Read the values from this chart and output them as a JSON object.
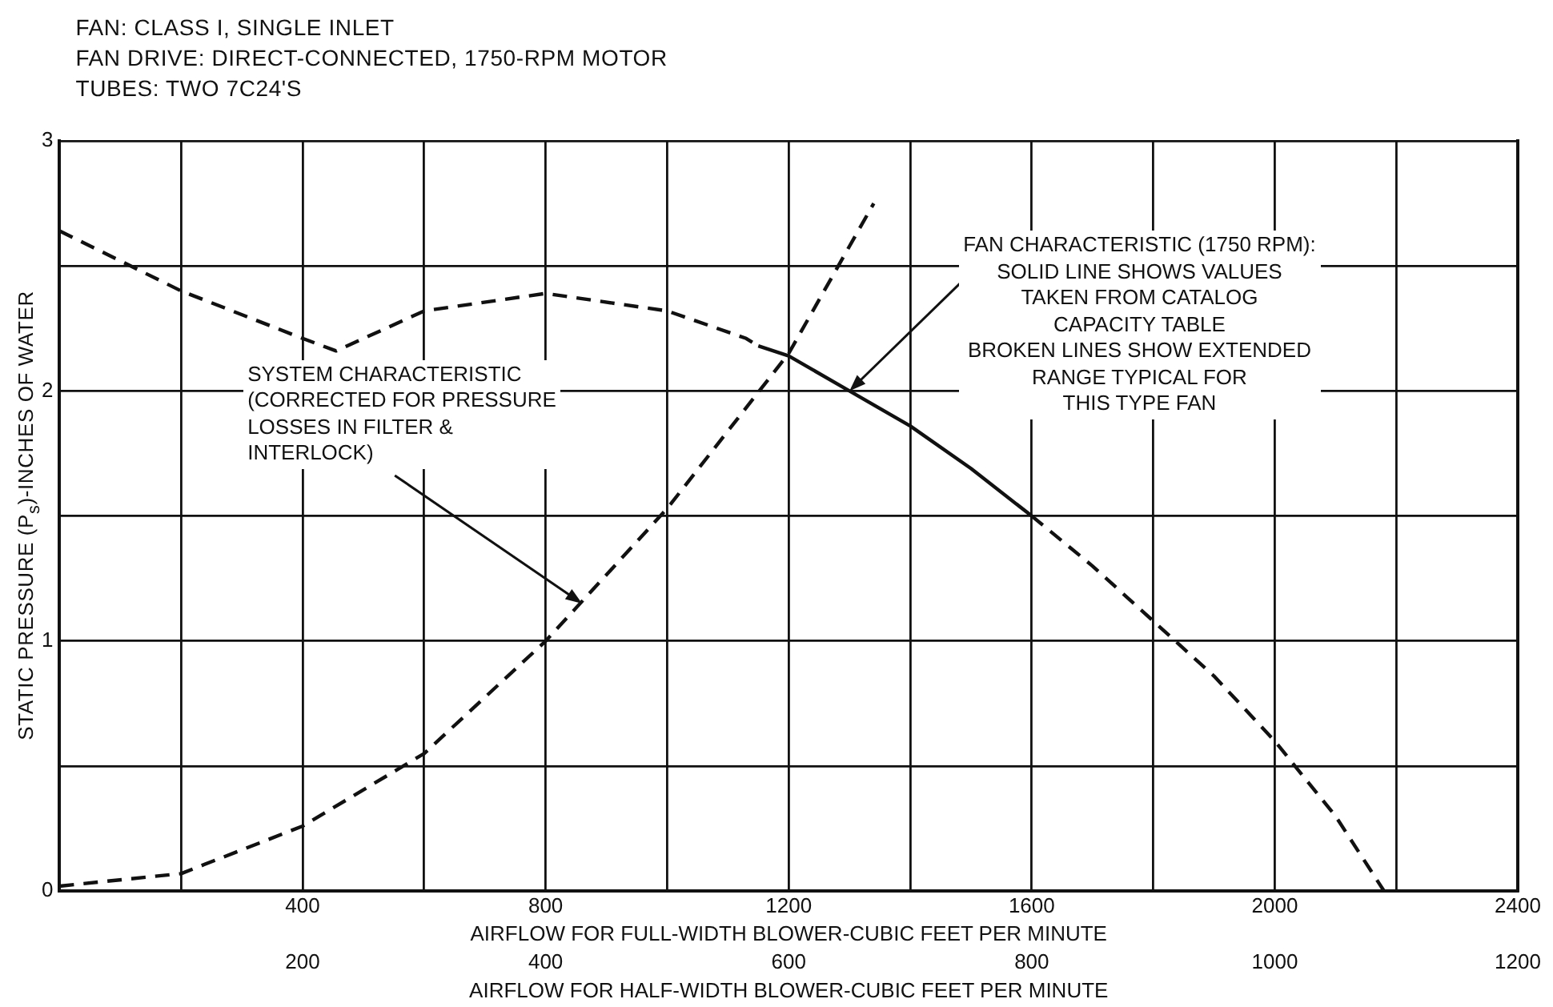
{
  "chart_data": {
    "type": "line",
    "xlabel": "AIRFLOW FOR FULL-WIDTH BLOWER-CUBIC FEET PER MINUTE",
    "x2label": "AIRFLOW FOR HALF-WIDTH BLOWER-CUBIC FEET PER MINUTE",
    "ylabel": "STATIC PRESSURE (P$_{s}$)-INCHES OF WATER",
    "xlim": [
      0,
      2400
    ],
    "xticks": [
      {
        "value": 0,
        "label": null
      },
      {
        "value": 200,
        "label": null
      },
      400,
      {
        "value": 600,
        "label": null
      },
      800,
      {
        "value": 1000,
        "label": null
      },
      1200,
      {
        "value": 1400,
        "label": null
      },
      1600,
      {
        "value": 1800,
        "label": null
      },
      2000,
      {
        "value": 2200,
        "label": null
      },
      2400
    ],
    "x2lim": [
      0,
      1200
    ],
    "x2ticks": [
      200,
      400,
      600,
      800,
      1000,
      1200
    ],
    "ylim": [
      0,
      3
    ],
    "yticks": [
      0,
      {
        "value": 0.5,
        "label": null
      },
      1,
      {
        "value": 1.5,
        "label": null
      },
      2,
      {
        "value": 2.5,
        "label": null
      },
      3
    ],
    "grid": true,
    "legend": false,
    "marker": "none",
    "series": [
      {
        "color": "#111111",
        "line_style": "dashed",
        "x": [
          0,
          200,
          400,
          455,
          600,
          800,
          1000,
          1130,
          1150
        ],
        "values": [
          2.64,
          2.4,
          2.21,
          2.16,
          2.32,
          2.39,
          2.32,
          2.21,
          2.18
        ]
      },
      {
        "color": "#111111",
        "line_style": "solid",
        "x": [
          1150,
          1200,
          1300,
          1400,
          1500,
          1600
        ],
        "values": [
          2.18,
          2.14,
          2.0,
          1.86,
          1.69,
          1.5
        ]
      },
      {
        "color": "#111111",
        "line_style": "dashed",
        "x": [
          1600,
          1700,
          1800,
          1900,
          2000,
          2100,
          2180
        ],
        "values": [
          1.5,
          1.3,
          1.08,
          0.86,
          0.6,
          0.3,
          0
        ]
      },
      {
        "color": "#111111",
        "line_style": "dashed",
        "x": [
          0,
          200,
          400,
          600,
          800,
          1000,
          1200,
          1340
        ],
        "values": [
          0.02,
          0.07,
          0.26,
          0.55,
          1.0,
          1.53,
          2.15,
          2.75
        ]
      }
    ],
    "annotations": [
      "FAN: CLASS I, SINGLE INLET",
      "FAN DRIVE: DIRECT-CONNECTED, 1750-RPM MOTOR",
      "TUBES: TWO 7C24'S",
      {
        "text": "FAN CHARACTERISTIC (1750 RPM):\nSOLID LINE SHOWS VALUES\nTAKEN FROM CATALOG\nCAPACITY TABLE\nBROKEN LINES SHOW EXTENDED\nRANGE TYPICAL FOR\nTHIS TYPE FAN",
        "x": 1300,
        "y": 2.0
      },
      {
        "text": "SYSTEM CHARACTERISTIC\n(CORRECTED FOR PRESSURE\nLOSSES IN FILTER &\nINTERLOCK)",
        "x": 860,
        "y": 1.15
      }
    ]
  }
}
